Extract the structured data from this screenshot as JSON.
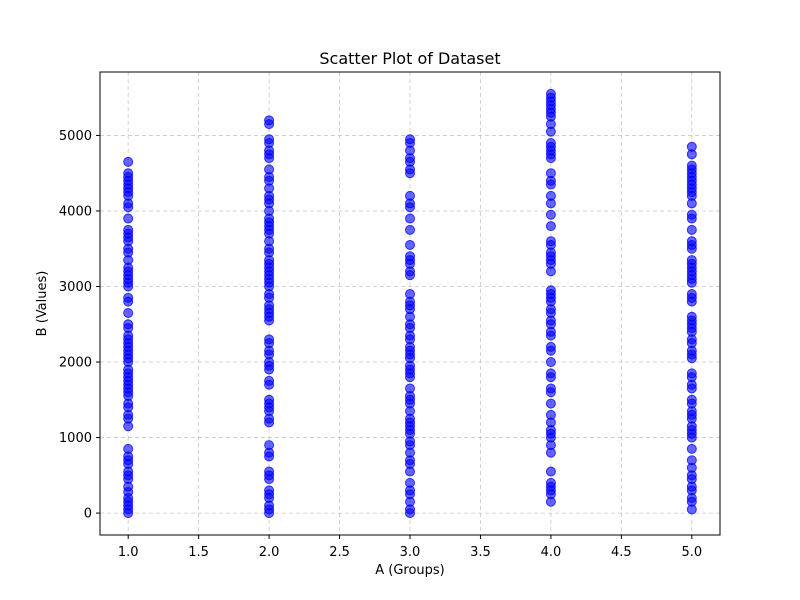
{
  "chart_data": {
    "type": "scatter",
    "title": "Scatter Plot of Dataset",
    "xlabel": "A (Groups)",
    "ylabel": "B (Values)",
    "xlim": [
      0.8,
      5.2
    ],
    "ylim": [
      -290,
      5840
    ],
    "xticks": [
      1.0,
      1.5,
      2.0,
      2.5,
      3.0,
      3.5,
      4.0,
      4.5,
      5.0
    ],
    "xtick_labels": [
      "1.0",
      "1.5",
      "2.0",
      "2.5",
      "3.0",
      "3.5",
      "4.0",
      "4.5",
      "5.0"
    ],
    "yticks": [
      0,
      1000,
      2000,
      3000,
      4000,
      5000
    ],
    "ytick_labels": [
      "0",
      "1000",
      "2000",
      "3000",
      "4000",
      "5000"
    ],
    "grid": true,
    "grid_style": "dashed",
    "marker_color": "#0000ff",
    "marker_alpha": 0.6,
    "series": [
      {
        "x": 1,
        "values": [
          0,
          50,
          100,
          150,
          200,
          280,
          350,
          450,
          500,
          550,
          650,
          700,
          750,
          850,
          1150,
          1250,
          1300,
          1400,
          1450,
          1550,
          1600,
          1650,
          1700,
          1750,
          1800,
          1850,
          1900,
          2000,
          2050,
          2100,
          2150,
          2200,
          2250,
          2300,
          2350,
          2450,
          2500,
          2650,
          2800,
          2850,
          3000,
          3050,
          3100,
          3150,
          3200,
          3250,
          3350,
          3450,
          3500,
          3600,
          3650,
          3700,
          3750,
          3900,
          4050,
          4100,
          4200,
          4250,
          4300,
          4350,
          4400,
          4450,
          4500,
          4650
        ]
      },
      {
        "x": 2,
        "values": [
          0,
          50,
          100,
          200,
          250,
          300,
          450,
          500,
          550,
          750,
          800,
          900,
          1200,
          1250,
          1350,
          1400,
          1450,
          1500,
          1700,
          1750,
          1900,
          1950,
          2000,
          2100,
          2150,
          2250,
          2300,
          2550,
          2600,
          2650,
          2700,
          2750,
          2850,
          2900,
          3000,
          3050,
          3100,
          3150,
          3200,
          3250,
          3300,
          3350,
          3450,
          3500,
          3600,
          3700,
          3750,
          3800,
          3850,
          3900,
          4000,
          4100,
          4150,
          4200,
          4300,
          4400,
          4450,
          4550,
          4700,
          4750,
          4800,
          4900,
          4950,
          5150,
          5200
        ]
      },
      {
        "x": 3,
        "values": [
          0,
          50,
          150,
          250,
          300,
          400,
          550,
          650,
          700,
          800,
          900,
          950,
          1050,
          1100,
          1150,
          1200,
          1250,
          1350,
          1450,
          1500,
          1550,
          1650,
          1800,
          1850,
          1900,
          1950,
          2050,
          2100,
          2150,
          2200,
          2300,
          2350,
          2450,
          2500,
          2600,
          2700,
          2750,
          2800,
          2900,
          3150,
          3200,
          3300,
          3350,
          3400,
          3550,
          3750,
          3900,
          4050,
          4100,
          4200,
          4500,
          4550,
          4650,
          4700,
          4800,
          4900,
          4950
        ]
      },
      {
        "x": 4,
        "values": [
          150,
          250,
          300,
          350,
          400,
          550,
          800,
          900,
          1000,
          1050,
          1100,
          1200,
          1300,
          1450,
          1600,
          1650,
          1800,
          1850,
          2000,
          2150,
          2200,
          2350,
          2400,
          2500,
          2550,
          2650,
          2700,
          2800,
          2850,
          2900,
          2950,
          3200,
          3300,
          3350,
          3400,
          3450,
          3550,
          3600,
          3800,
          3950,
          4100,
          4200,
          4350,
          4400,
          4500,
          4700,
          4750,
          4800,
          4850,
          4900,
          5050,
          5150,
          5250,
          5300,
          5350,
          5400,
          5450,
          5500,
          5550
        ]
      },
      {
        "x": 5,
        "values": [
          50,
          150,
          200,
          300,
          350,
          450,
          500,
          600,
          700,
          850,
          1000,
          1050,
          1100,
          1150,
          1250,
          1300,
          1350,
          1450,
          1500,
          1650,
          1700,
          1800,
          1850,
          2050,
          2100,
          2150,
          2250,
          2300,
          2400,
          2450,
          2500,
          2550,
          2600,
          2800,
          2850,
          2900,
          3050,
          3100,
          3150,
          3200,
          3250,
          3300,
          3350,
          3500,
          3550,
          3600,
          3750,
          3900,
          3950,
          4100,
          4200,
          4250,
          4300,
          4350,
          4400,
          4450,
          4500,
          4550,
          4600,
          4750,
          4850
        ]
      }
    ]
  }
}
